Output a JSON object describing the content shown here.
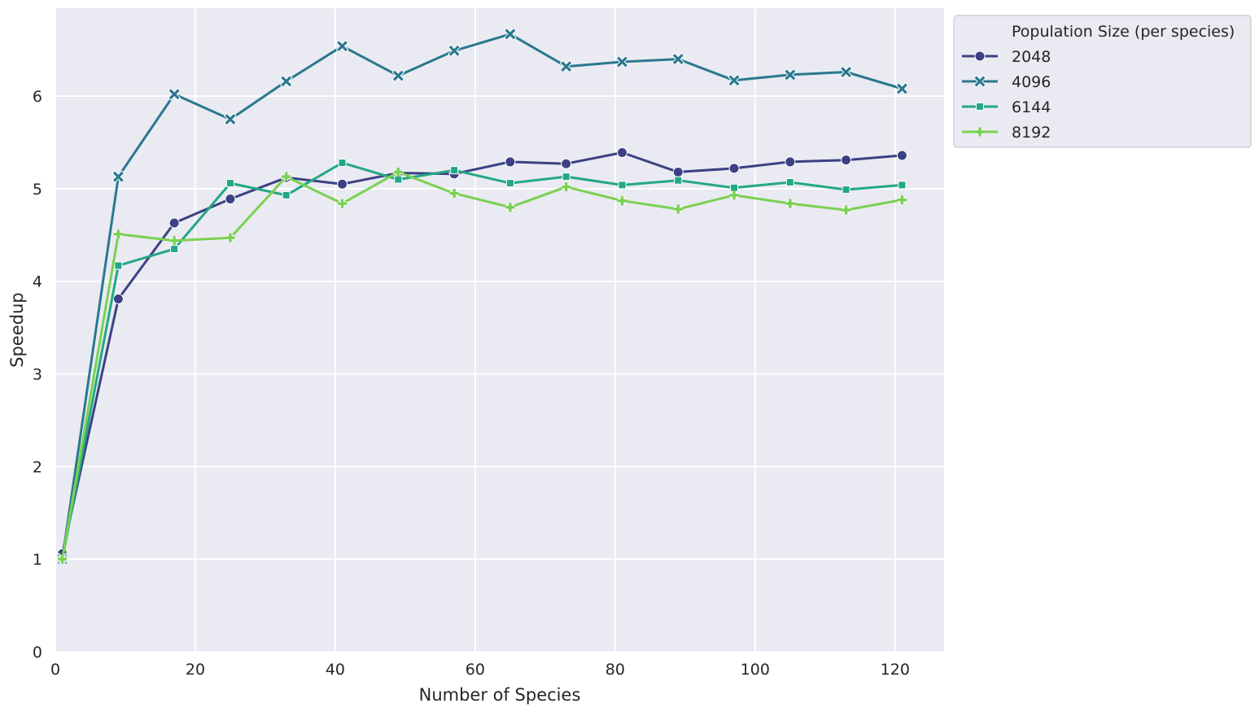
{
  "chart_data": {
    "type": "line",
    "xlabel": "Number of Species",
    "ylabel": "Speedup",
    "xlim": [
      0,
      127
    ],
    "ylim": [
      0,
      6.95
    ],
    "x_ticks": [
      0,
      20,
      40,
      60,
      80,
      100,
      120
    ],
    "y_ticks": [
      0,
      1,
      2,
      3,
      4,
      5,
      6
    ],
    "grid": true,
    "background": "#eaeaf2",
    "legend": {
      "title": "Population Size (per species)",
      "placement": "outside-top-right"
    },
    "x": [
      1,
      9,
      17,
      25,
      33,
      41,
      49,
      57,
      65,
      73,
      81,
      89,
      97,
      105,
      113,
      121
    ],
    "series": [
      {
        "name": "2048",
        "color": "#3b4183",
        "marker": "circle",
        "values": [
          1.06,
          3.81,
          4.63,
          4.89,
          5.12,
          5.05,
          5.17,
          5.16,
          5.29,
          5.27,
          5.39,
          5.18,
          5.22,
          5.29,
          5.31,
          5.36
        ]
      },
      {
        "name": "4096",
        "color": "#2a788e",
        "marker": "x",
        "values": [
          1.0,
          5.13,
          6.02,
          5.75,
          6.16,
          6.54,
          6.22,
          6.49,
          6.67,
          6.32,
          6.37,
          6.4,
          6.17,
          6.23,
          6.26,
          6.08
        ]
      },
      {
        "name": "6144",
        "color": "#22a884",
        "marker": "square",
        "values": [
          1.0,
          4.17,
          4.35,
          5.06,
          4.93,
          5.28,
          5.1,
          5.2,
          5.06,
          5.13,
          5.04,
          5.09,
          5.01,
          5.07,
          4.99,
          5.04
        ]
      },
      {
        "name": "8192",
        "color": "#7ad151",
        "marker": "plus",
        "values": [
          1.0,
          4.51,
          4.44,
          4.47,
          5.13,
          4.84,
          5.18,
          4.95,
          4.8,
          5.02,
          4.87,
          4.78,
          4.93,
          4.84,
          4.77,
          4.88
        ]
      }
    ]
  }
}
